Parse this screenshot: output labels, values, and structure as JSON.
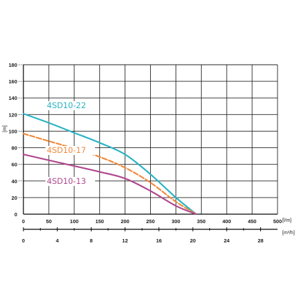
{
  "chart_data": {
    "type": "line",
    "x_unit": "[l/m]",
    "x2_unit": "[m³/h]",
    "y_unit": "[m]",
    "xlim": [
      0,
      500
    ],
    "ylim": [
      0,
      180
    ],
    "x2lim": [
      0,
      30
    ],
    "x_ticks": [
      0,
      50,
      100,
      150,
      200,
      250,
      300,
      350,
      400,
      450,
      500
    ],
    "x2_ticks": [
      0,
      4,
      8,
      12,
      16,
      20,
      24,
      28
    ],
    "y_ticks": [
      0,
      20,
      40,
      60,
      80,
      100,
      120,
      140,
      160,
      180
    ],
    "grid": true,
    "series": [
      {
        "name": "4SD10-22",
        "color": "#2bb3c5",
        "style": "solid",
        "x": [
          0,
          50,
          100,
          150,
          200,
          250,
          300,
          340
        ],
        "y": [
          121,
          110,
          98,
          86,
          72,
          48,
          20,
          0
        ]
      },
      {
        "name": "4SD10-17",
        "color": "#f08a3c",
        "style": "dashed",
        "x": [
          0,
          50,
          100,
          150,
          200,
          250,
          300,
          340
        ],
        "y": [
          97,
          88,
          79,
          69,
          56,
          38,
          15,
          0
        ]
      },
      {
        "name": "4SD10-13",
        "color": "#b0488e",
        "style": "solid",
        "x": [
          0,
          50,
          100,
          150,
          200,
          250,
          300,
          340
        ],
        "y": [
          72,
          65,
          58,
          51,
          43,
          28,
          10,
          0
        ]
      }
    ]
  }
}
